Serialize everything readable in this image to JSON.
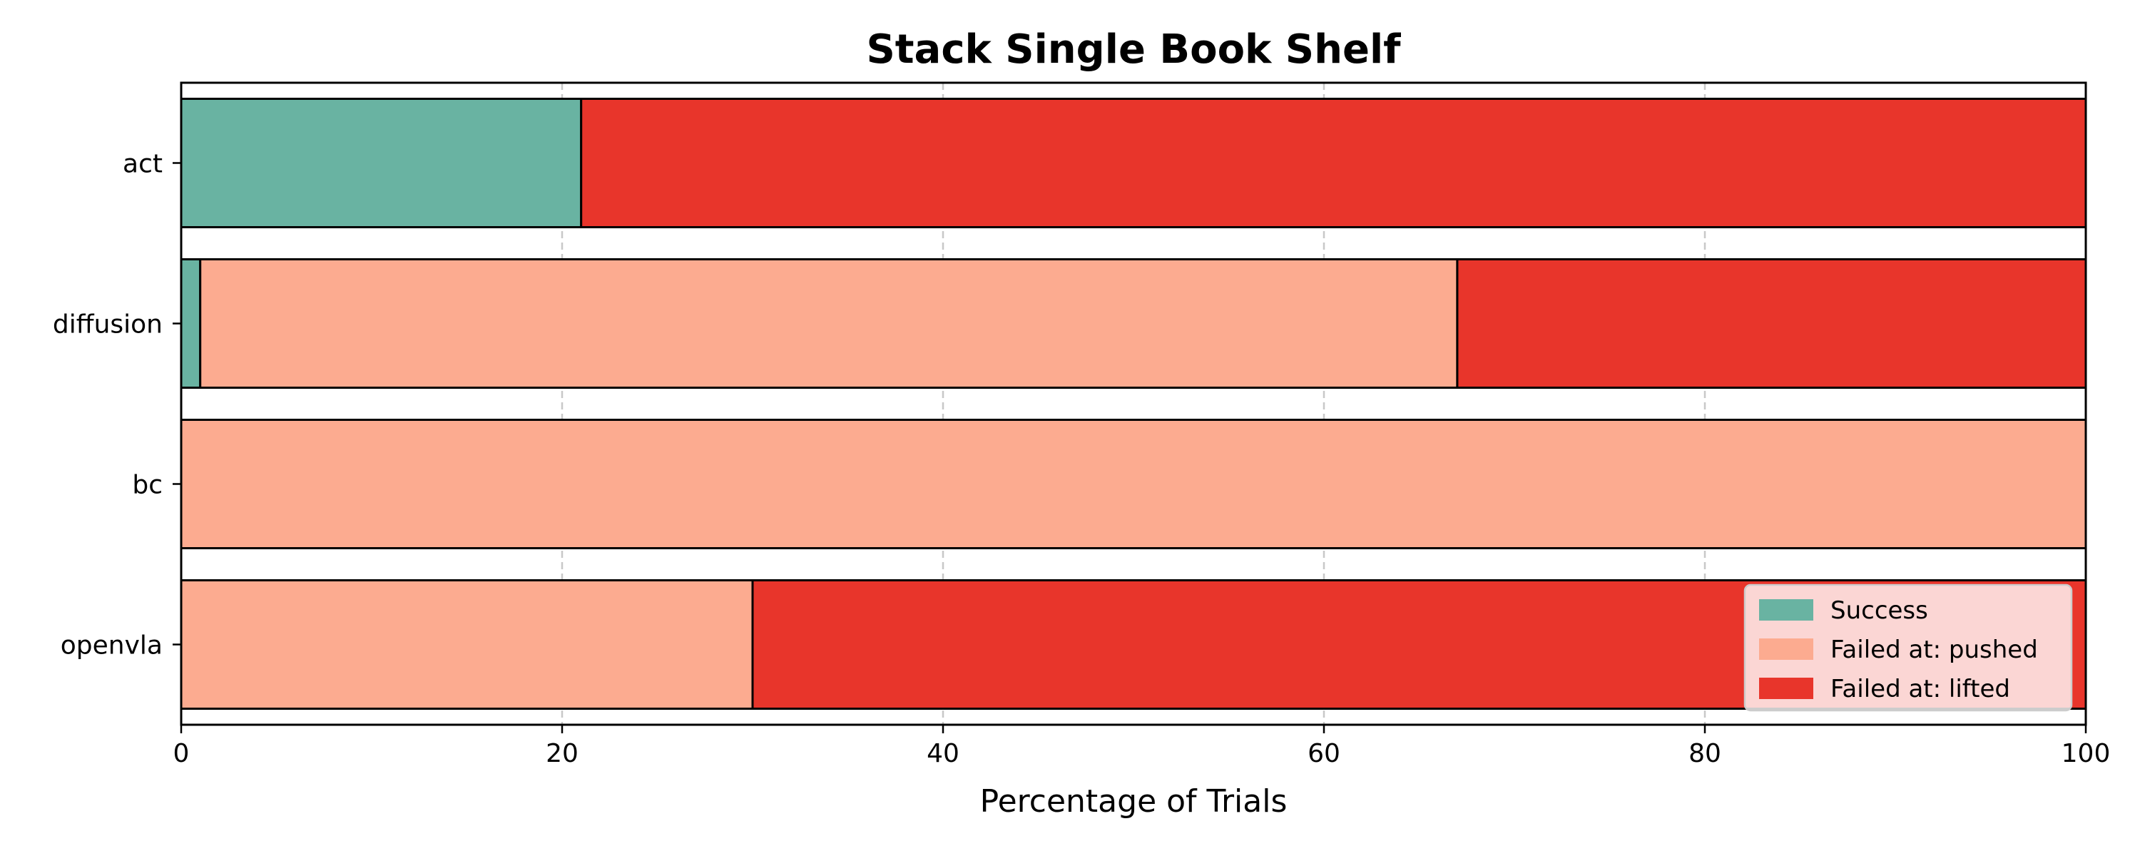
{
  "chart_data": {
    "type": "bar",
    "orientation": "horizontal",
    "stacked": true,
    "title": "Stack Single Book Shelf",
    "xlabel": "Percentage of Trials",
    "ylabel": "",
    "xlim": [
      0,
      100
    ],
    "xticks": [
      0,
      20,
      40,
      60,
      80,
      100
    ],
    "grid": "x-dashed",
    "legend_position": "bottom-right",
    "categories": [
      "act",
      "diffusion",
      "bc",
      "openvla"
    ],
    "series": [
      {
        "name": "Success",
        "color": "#69b3a2",
        "values": [
          21,
          1,
          0,
          0
        ]
      },
      {
        "name": "Failed at: pushed",
        "color": "#fcab90",
        "values": [
          0,
          66,
          100,
          30
        ]
      },
      {
        "name": "Failed at: lifted",
        "color": "#e8352b",
        "values": [
          79,
          33,
          0,
          70
        ]
      }
    ]
  }
}
